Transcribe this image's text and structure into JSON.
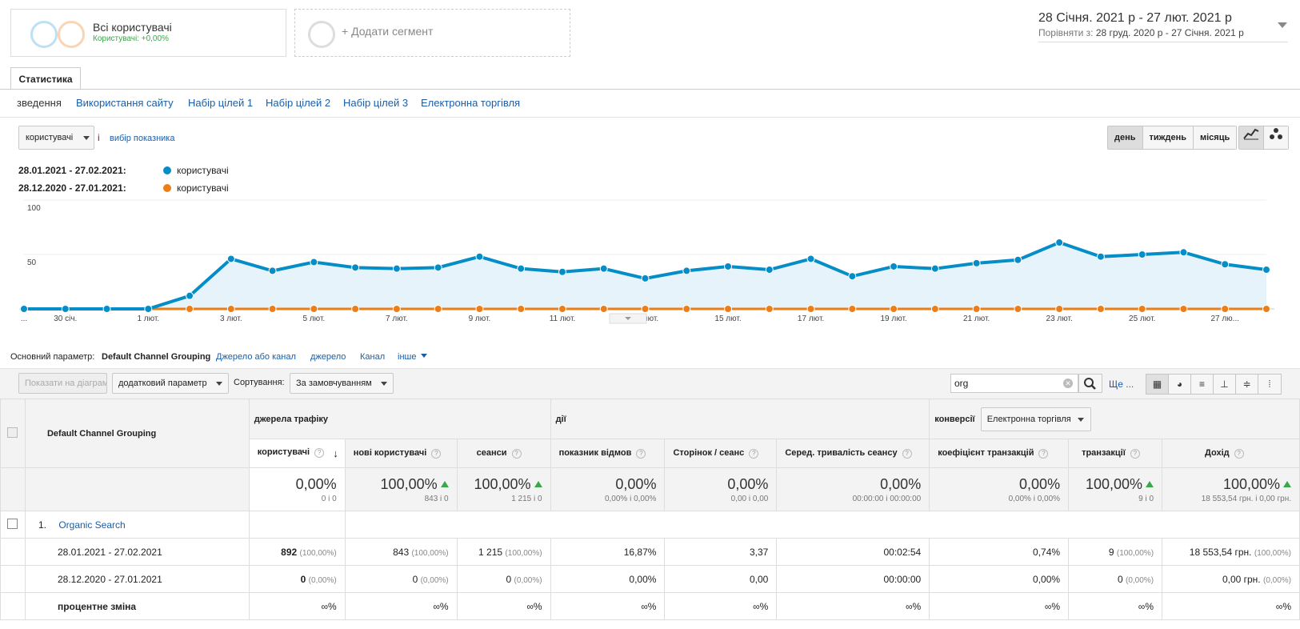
{
  "segments": {
    "all_users_title": "Всі користувачі",
    "all_users_sub": "Користувачі: +0,00%",
    "add_segment": "+ Додати сегмент"
  },
  "date_range": {
    "main": "28 Січня. 2021 р  -  27 лют. 2021 р",
    "compare_label": "Порівняти з:",
    "compare_value": "28 груд. 2020 р  -  27 Січня. 2021 р"
  },
  "tab": "Статистика",
  "subnav": [
    "зведення",
    "Використання сайту",
    "Набір цілей 1",
    "Набір цілей 2",
    "Набір цілей 3",
    "Електронна торгівля"
  ],
  "metric_selector": {
    "value": "користувачі",
    "vs": "і",
    "pick": "вибір показника"
  },
  "period_buttons": [
    "день",
    "тиждень",
    "місяць"
  ],
  "legend": [
    {
      "range": "28.01.2021 - 27.02.2021:",
      "label": "користувачі",
      "color": "#058dc7"
    },
    {
      "range": "28.12.2020 - 27.01.2021:",
      "label": "користувачі",
      "color": "#ed7e17"
    }
  ],
  "chart_data": {
    "type": "line",
    "ylim": [
      0,
      100
    ],
    "yticks": [
      "100",
      "50"
    ],
    "xticks": [
      "...",
      "30 січ.",
      "1 лют.",
      "3 лют.",
      "5 лют.",
      "7 лют.",
      "9 лют.",
      "11 лют.",
      "13 лют.",
      "15 лют.",
      "17 лют.",
      "19 лют.",
      "21 лют.",
      "23 лют.",
      "25 лют.",
      "27 лю..."
    ],
    "series": [
      {
        "name": "28.01.2021 - 27.02.2021",
        "color": "#058dc7",
        "values": [
          0,
          0,
          0,
          0,
          12,
          46,
          35,
          43,
          38,
          37,
          38,
          48,
          37,
          34,
          37,
          28,
          35,
          39,
          36,
          46,
          30,
          39,
          37,
          42,
          45,
          61,
          48,
          50,
          52,
          41,
          36
        ]
      },
      {
        "name": "28.12.2020 - 27.01.2021",
        "color": "#ed7e17",
        "values": [
          0,
          0,
          0,
          0,
          0,
          0,
          0,
          0,
          0,
          0,
          0,
          0,
          0,
          0,
          0,
          0,
          0,
          0,
          0,
          0,
          0,
          0,
          0,
          0,
          0,
          0,
          0,
          0,
          0,
          0,
          0
        ]
      }
    ]
  },
  "primary_dim": {
    "label": "Основний параметр:",
    "active": "Default Channel Grouping",
    "links": [
      "Джерело або канал",
      "джерело",
      "Канал",
      "інше"
    ]
  },
  "toolbar": {
    "plot": "Показати на діаграмі",
    "secondary": "додатковий параметр",
    "sort_label": "Сортування:",
    "sort_value": "За замовчуванням",
    "search_value": "org",
    "more": "Ще ..."
  },
  "table": {
    "dim_header": "Default Channel Grouping",
    "group_traffic": "джерела трафіку",
    "group_actions": "дії",
    "group_conv": "конверсії",
    "conv_select": "Електронна торгівля",
    "columns": [
      "користувачі",
      "нові користувачі",
      "сеанси",
      "показник відмов",
      "Сторінок / сеанс",
      "Серед. тривалість сеансу",
      "коефіцієнт транзакцій",
      "транзакції",
      "Дохід"
    ],
    "totals": [
      {
        "big": "0,00%",
        "small": "0 і 0",
        "up": false
      },
      {
        "big": "100,00%",
        "small": "843 і 0",
        "up": true
      },
      {
        "big": "100,00%",
        "small": "1 215 і 0",
        "up": true
      },
      {
        "big": "0,00%",
        "small": "0,00% і 0,00%",
        "up": false
      },
      {
        "big": "0,00%",
        "small": "0,00 і 0,00",
        "up": false
      },
      {
        "big": "0,00%",
        "small": "00:00:00 і 00:00:00",
        "up": false
      },
      {
        "big": "0,00%",
        "small": "0,00% і 0,00%",
        "up": false
      },
      {
        "big": "100,00%",
        "small": "9 і 0",
        "up": true
      },
      {
        "big": "100,00%",
        "small": "18 553,54 грн. і 0,00 грн.",
        "up": true
      }
    ],
    "row_index": "1.",
    "row_name": "Organic Search",
    "rows": [
      {
        "label": "28.01.2021 - 27.02.2021",
        "cells": [
          [
            "892",
            "(100,00%)"
          ],
          [
            "843",
            "(100,00%)"
          ],
          [
            "1 215",
            "(100,00%)"
          ],
          [
            "16,87%",
            ""
          ],
          [
            "3,37",
            ""
          ],
          [
            "00:02:54",
            ""
          ],
          [
            "0,74%",
            ""
          ],
          [
            "9",
            "(100,00%)"
          ],
          [
            "18 553,54 грн.",
            "(100,00%)"
          ]
        ]
      },
      {
        "label": "28.12.2020 - 27.01.2021",
        "cells": [
          [
            "0",
            "(0,00%)"
          ],
          [
            "0",
            "(0,00%)"
          ],
          [
            "0",
            "(0,00%)"
          ],
          [
            "0,00%",
            ""
          ],
          [
            "0,00",
            ""
          ],
          [
            "00:00:00",
            ""
          ],
          [
            "0,00%",
            ""
          ],
          [
            "0",
            "(0,00%)"
          ],
          [
            "0,00 грн.",
            "(0,00%)"
          ]
        ]
      },
      {
        "label": "процентне зміна",
        "cells": [
          [
            "∞%",
            ""
          ],
          [
            "∞%",
            ""
          ],
          [
            "∞%",
            ""
          ],
          [
            "∞%",
            ""
          ],
          [
            "∞%",
            ""
          ],
          [
            "∞%",
            ""
          ],
          [
            "∞%",
            ""
          ],
          [
            "∞%",
            ""
          ],
          [
            "∞%",
            ""
          ]
        ]
      }
    ]
  }
}
